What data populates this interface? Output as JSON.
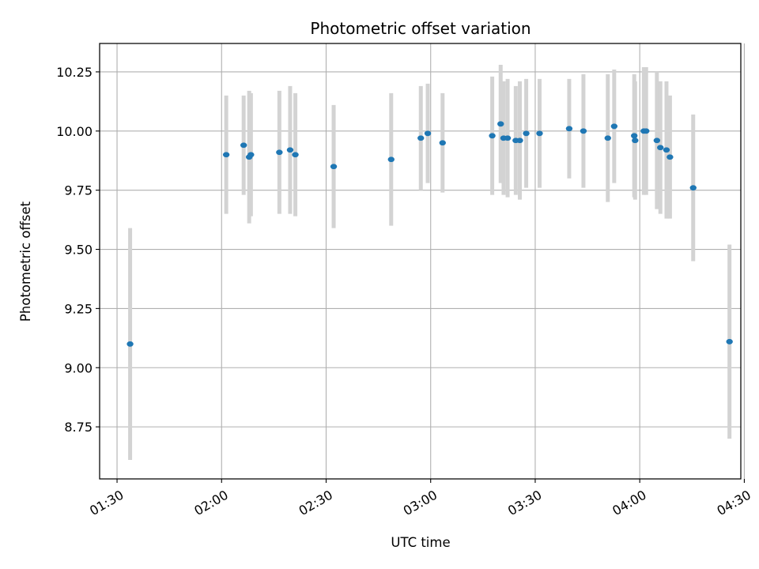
{
  "chart_data": {
    "type": "scatter",
    "title": "Photometric offset variation",
    "xlabel": "UTC time",
    "ylabel": "Photometric offset",
    "x_axis": "time",
    "xlim": [
      "01:25",
      "04:29"
    ],
    "ylim": [
      8.53,
      10.37
    ],
    "grid": true,
    "x_ticks": [
      "01:30",
      "02:00",
      "02:30",
      "03:00",
      "03:30",
      "04:00",
      "04:30"
    ],
    "y_ticks": [
      "8.75",
      "9.00",
      "9.25",
      "9.50",
      "9.75",
      "10.00",
      "10.25"
    ],
    "marker_color": "#1f77b4",
    "errorbar_color": "#d3d3d3",
    "points": [
      {
        "t": "01:33:45",
        "y": 9.1,
        "err": 0.49
      },
      {
        "t": "02:01:20",
        "y": 9.9,
        "err": 0.25
      },
      {
        "t": "02:06:20",
        "y": 9.94,
        "err": 0.21
      },
      {
        "t": "02:07:55",
        "y": 9.89,
        "err": 0.28
      },
      {
        "t": "02:08:25",
        "y": 9.9,
        "err": 0.26
      },
      {
        "t": "02:16:35",
        "y": 9.91,
        "err": 0.26
      },
      {
        "t": "02:19:40",
        "y": 9.92,
        "err": 0.27
      },
      {
        "t": "02:21:10",
        "y": 9.9,
        "err": 0.26
      },
      {
        "t": "02:32:10",
        "y": 9.85,
        "err": 0.26
      },
      {
        "t": "02:48:40",
        "y": 9.88,
        "err": 0.28
      },
      {
        "t": "02:57:10",
        "y": 9.97,
        "err": 0.22
      },
      {
        "t": "02:59:10",
        "y": 9.99,
        "err": 0.21
      },
      {
        "t": "03:03:25",
        "y": 9.95,
        "err": 0.21
      },
      {
        "t": "03:17:40",
        "y": 9.98,
        "err": 0.25
      },
      {
        "t": "03:20:05",
        "y": 10.03,
        "err": 0.25
      },
      {
        "t": "03:20:55",
        "y": 9.97,
        "err": 0.24
      },
      {
        "t": "03:22:05",
        "y": 9.97,
        "err": 0.25
      },
      {
        "t": "03:24:25",
        "y": 9.96,
        "err": 0.23
      },
      {
        "t": "03:25:35",
        "y": 9.96,
        "err": 0.25
      },
      {
        "t": "03:27:25",
        "y": 9.99,
        "err": 0.23
      },
      {
        "t": "03:31:15",
        "y": 9.99,
        "err": 0.23
      },
      {
        "t": "03:39:45",
        "y": 10.01,
        "err": 0.21
      },
      {
        "t": "03:43:50",
        "y": 10.0,
        "err": 0.24
      },
      {
        "t": "03:50:50",
        "y": 9.97,
        "err": 0.27
      },
      {
        "t": "03:52:40",
        "y": 10.02,
        "err": 0.24
      },
      {
        "t": "03:58:25",
        "y": 9.98,
        "err": 0.26
      },
      {
        "t": "03:58:40",
        "y": 9.96,
        "err": 0.25
      },
      {
        "t": "04:01:10",
        "y": 10.0,
        "err": 0.27
      },
      {
        "t": "04:01:50",
        "y": 10.0,
        "err": 0.27
      },
      {
        "t": "04:04:55",
        "y": 9.96,
        "err": 0.29
      },
      {
        "t": "04:05:55",
        "y": 9.93,
        "err": 0.28
      },
      {
        "t": "04:07:40",
        "y": 9.92,
        "err": 0.29
      },
      {
        "t": "04:08:40",
        "y": 9.89,
        "err": 0.26
      },
      {
        "t": "04:15:20",
        "y": 9.76,
        "err": 0.31
      },
      {
        "t": "04:25:45",
        "y": 9.11,
        "err": 0.41
      }
    ]
  }
}
